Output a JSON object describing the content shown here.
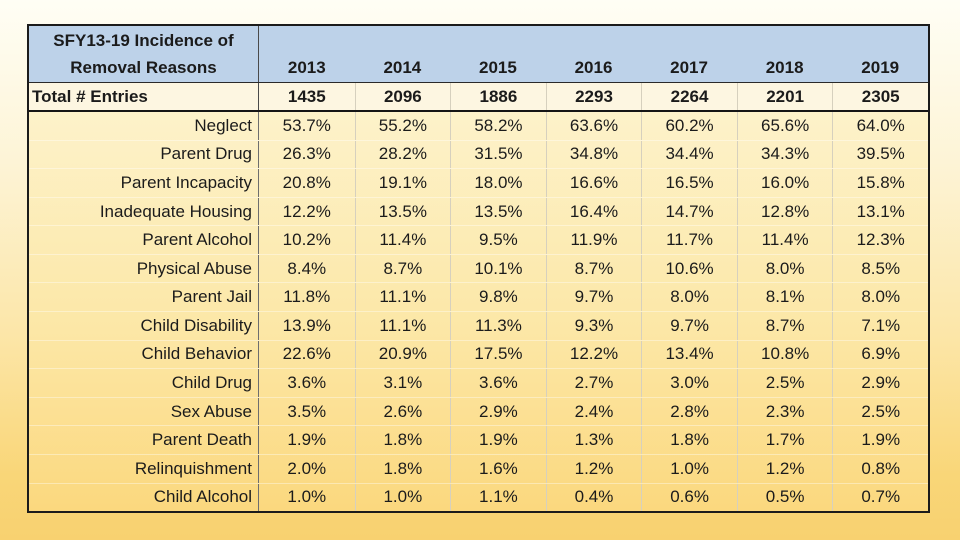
{
  "table": {
    "header": {
      "title_line1": "SFY13-19 Incidence of",
      "title_line2": "Removal Reasons",
      "years": [
        "2013",
        "2014",
        "2015",
        "2016",
        "2017",
        "2018",
        "2019"
      ],
      "header_bg": "#bdd2e9"
    },
    "total_row": {
      "label": "Total # Entries",
      "values": [
        "1435",
        "2096",
        "1886",
        "2293",
        "2264",
        "2201",
        "2305"
      ]
    },
    "rows": [
      {
        "label": "Neglect",
        "values": [
          "53.7%",
          "55.2%",
          "58.2%",
          "63.6%",
          "60.2%",
          "65.6%",
          "64.0%"
        ]
      },
      {
        "label": "Parent Drug",
        "values": [
          "26.3%",
          "28.2%",
          "31.5%",
          "34.8%",
          "34.4%",
          "34.3%",
          "39.5%"
        ]
      },
      {
        "label": "Parent Incapacity",
        "values": [
          "20.8%",
          "19.1%",
          "18.0%",
          "16.6%",
          "16.5%",
          "16.0%",
          "15.8%"
        ]
      },
      {
        "label": "Inadequate Housing",
        "values": [
          "12.2%",
          "13.5%",
          "13.5%",
          "16.4%",
          "14.7%",
          "12.8%",
          "13.1%"
        ]
      },
      {
        "label": "Parent Alcohol",
        "values": [
          "10.2%",
          "11.4%",
          "9.5%",
          "11.9%",
          "11.7%",
          "11.4%",
          "12.3%"
        ]
      },
      {
        "label": "Physical Abuse",
        "values": [
          "8.4%",
          "8.7%",
          "10.1%",
          "8.7%",
          "10.6%",
          "8.0%",
          "8.5%"
        ]
      },
      {
        "label": "Parent Jail",
        "values": [
          "11.8%",
          "11.1%",
          "9.8%",
          "9.7%",
          "8.0%",
          "8.1%",
          "8.0%"
        ]
      },
      {
        "label": "Child Disability",
        "values": [
          "13.9%",
          "11.1%",
          "11.3%",
          "9.3%",
          "9.7%",
          "8.7%",
          "7.1%"
        ]
      },
      {
        "label": "Child Behavior",
        "values": [
          "22.6%",
          "20.9%",
          "17.5%",
          "12.2%",
          "13.4%",
          "10.8%",
          "6.9%"
        ]
      },
      {
        "label": "Child Drug",
        "values": [
          "3.6%",
          "3.1%",
          "3.6%",
          "2.7%",
          "3.0%",
          "2.5%",
          "2.9%"
        ]
      },
      {
        "label": "Sex Abuse",
        "values": [
          "3.5%",
          "2.6%",
          "2.9%",
          "2.4%",
          "2.8%",
          "2.3%",
          "2.5%"
        ]
      },
      {
        "label": "Parent Death",
        "values": [
          "1.9%",
          "1.8%",
          "1.9%",
          "1.3%",
          "1.8%",
          "1.7%",
          "1.9%"
        ]
      },
      {
        "label": "Relinquishment",
        "values": [
          "2.0%",
          "1.8%",
          "1.6%",
          "1.2%",
          "1.0%",
          "1.2%",
          "0.8%"
        ]
      },
      {
        "label": "Child Alcohol",
        "values": [
          "1.0%",
          "1.0%",
          "1.1%",
          "0.4%",
          "0.6%",
          "0.5%",
          "0.7%"
        ]
      }
    ]
  },
  "chart_data": {
    "type": "table",
    "title": "SFY13-19 Incidence of Removal Reasons",
    "categories": [
      "2013",
      "2014",
      "2015",
      "2016",
      "2017",
      "2018",
      "2019"
    ],
    "total_entries": [
      1435,
      2096,
      1886,
      2293,
      2264,
      2201,
      2305
    ],
    "units": "percent",
    "series": [
      {
        "name": "Neglect",
        "values": [
          53.7,
          55.2,
          58.2,
          63.6,
          60.2,
          65.6,
          64.0
        ]
      },
      {
        "name": "Parent Drug",
        "values": [
          26.3,
          28.2,
          31.5,
          34.8,
          34.4,
          34.3,
          39.5
        ]
      },
      {
        "name": "Parent Incapacity",
        "values": [
          20.8,
          19.1,
          18.0,
          16.6,
          16.5,
          16.0,
          15.8
        ]
      },
      {
        "name": "Inadequate Housing",
        "values": [
          12.2,
          13.5,
          13.5,
          16.4,
          14.7,
          12.8,
          13.1
        ]
      },
      {
        "name": "Parent Alcohol",
        "values": [
          10.2,
          11.4,
          9.5,
          11.9,
          11.7,
          11.4,
          12.3
        ]
      },
      {
        "name": "Physical Abuse",
        "values": [
          8.4,
          8.7,
          10.1,
          8.7,
          10.6,
          8.0,
          8.5
        ]
      },
      {
        "name": "Parent Jail",
        "values": [
          11.8,
          11.1,
          9.8,
          9.7,
          8.0,
          8.1,
          8.0
        ]
      },
      {
        "name": "Child Disability",
        "values": [
          13.9,
          11.1,
          11.3,
          9.3,
          9.7,
          8.7,
          7.1
        ]
      },
      {
        "name": "Child Behavior",
        "values": [
          22.6,
          20.9,
          17.5,
          12.2,
          13.4,
          10.8,
          6.9
        ]
      },
      {
        "name": "Child Drug",
        "values": [
          3.6,
          3.1,
          3.6,
          2.7,
          3.0,
          2.5,
          2.9
        ]
      },
      {
        "name": "Sex Abuse",
        "values": [
          3.5,
          2.6,
          2.9,
          2.4,
          2.8,
          2.3,
          2.5
        ]
      },
      {
        "name": "Parent Death",
        "values": [
          1.9,
          1.8,
          1.9,
          1.3,
          1.8,
          1.7,
          1.9
        ]
      },
      {
        "name": "Relinquishment",
        "values": [
          2.0,
          1.8,
          1.6,
          1.2,
          1.0,
          1.2,
          0.8
        ]
      },
      {
        "name": "Child Alcohol",
        "values": [
          1.0,
          1.0,
          1.1,
          0.4,
          0.6,
          0.5,
          0.7
        ]
      }
    ],
    "colors": {
      "header_bg": "#bdd2e9",
      "total_row_bg": "#fdf6e1",
      "body_top": "#fdf2ca",
      "body_bottom": "#fbd87e",
      "page_top": "#fffef5",
      "page_bottom": "#f8d170",
      "border": "#1b1b1b"
    },
    "layout": {
      "legend": "none",
      "grid": "column-separators-only"
    }
  }
}
